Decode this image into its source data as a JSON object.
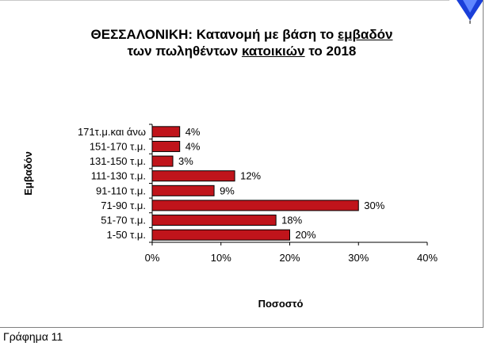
{
  "title": {
    "line1_pre": "ΘΕΣΣΑΛΟΝΙΚΗ:  Κατανομή με βάση το ",
    "line1_u": "εμβαδόν",
    "line2_pre": "των πωληθέντων ",
    "line2_u": "κατοικιών",
    "line2_post": " το 2018"
  },
  "caption": "Γράφημα 11",
  "colors": {
    "bar": "#C0141B",
    "bar_stroke": "#000000",
    "marker": "#1a3fd9"
  },
  "chart_data": {
    "type": "bar",
    "orientation": "horizontal",
    "categories": [
      "1-50 τ.μ.",
      "51-70 τ.μ.",
      "71-90 τ.μ.",
      "91-110 τ.μ.",
      "111-130 τ.μ.",
      "131-150 τ.μ.",
      "151-170 τ.μ.",
      "171τ.μ.και άνω"
    ],
    "values": [
      20,
      18,
      30,
      9,
      12,
      3,
      4,
      4
    ],
    "data_labels": [
      "20%",
      "18%",
      "30%",
      "9%",
      "12%",
      "3%",
      "4%",
      "4%"
    ],
    "xlim": [
      0,
      40
    ],
    "xticks": [
      0,
      10,
      20,
      30,
      40
    ],
    "xtick_labels": [
      "0%",
      "10%",
      "20%",
      "30%",
      "40%"
    ],
    "xlabel": "Ποσοστό",
    "ylabel": "Εμβαδόν",
    "grid": false,
    "legend": "none"
  }
}
